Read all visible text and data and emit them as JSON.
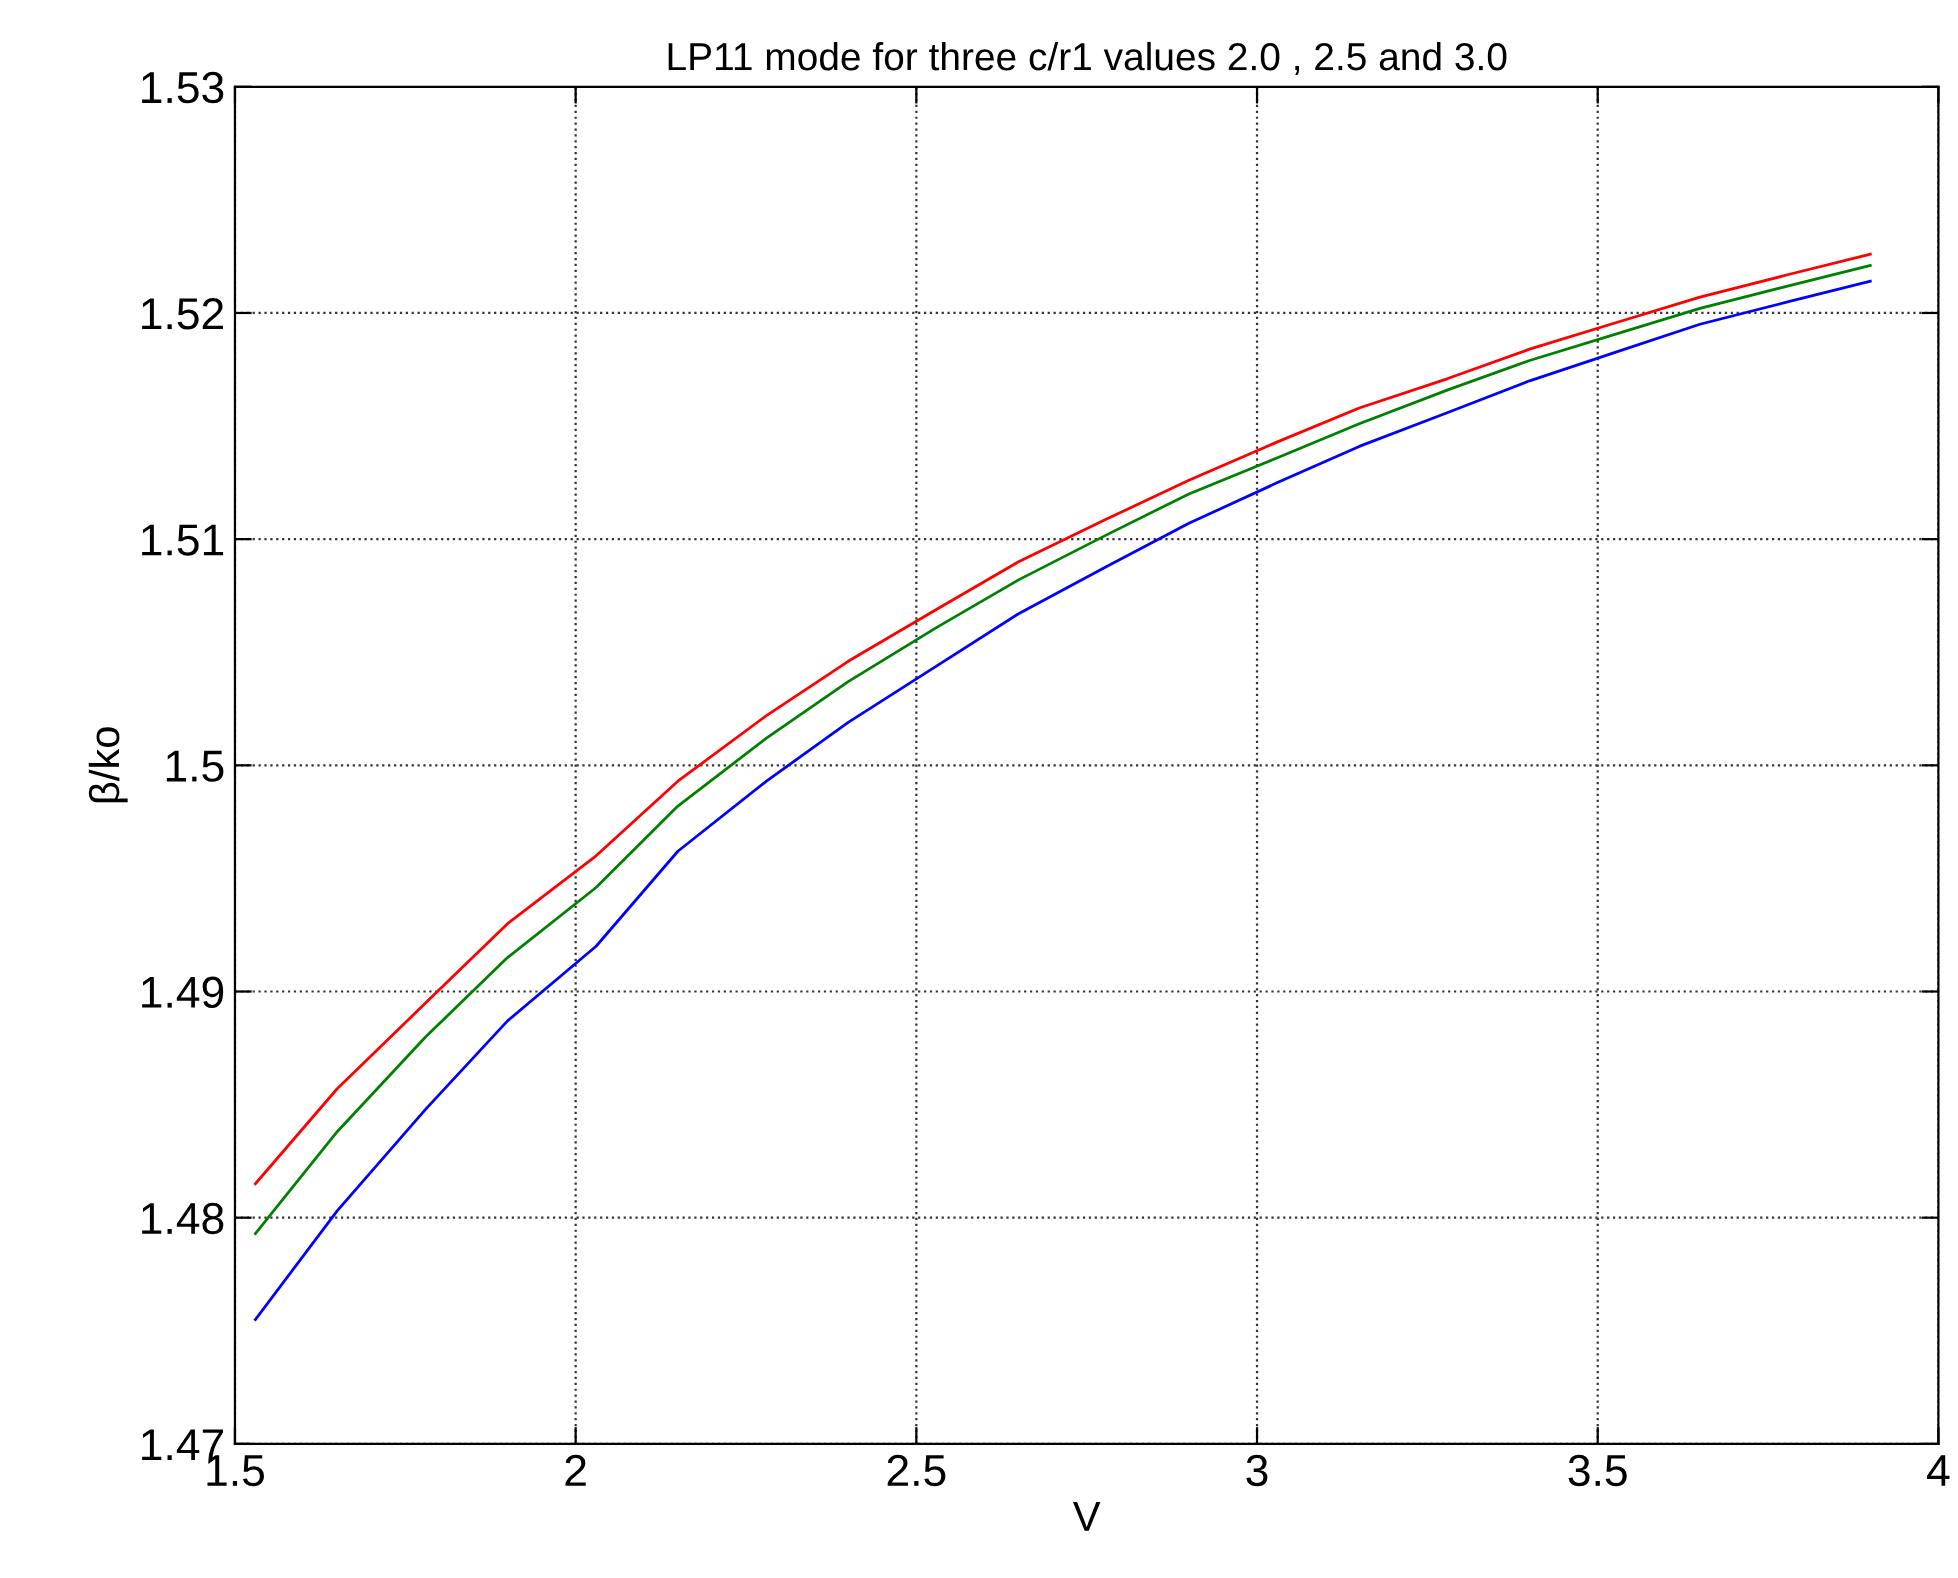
{
  "chart_data": {
    "type": "line",
    "title": "LP11 mode for three c/r1 values 2.0 , 2.5 and 3.0",
    "xlabel": "V",
    "ylabel": "β/ko",
    "x": [
      1.53,
      1.65,
      1.78,
      1.9,
      2.03,
      2.15,
      2.28,
      2.4,
      2.53,
      2.65,
      2.78,
      2.9,
      3.03,
      3.15,
      3.28,
      3.4,
      3.53,
      3.65,
      3.78,
      3.9
    ],
    "series": [
      {
        "color": "#ff0000",
        "values": [
          1.4815,
          1.4857,
          1.4895,
          1.493,
          1.496,
          1.4993,
          1.5022,
          1.5046,
          1.5069,
          1.509,
          1.5109,
          1.5126,
          1.5143,
          1.5158,
          1.5171,
          1.5184,
          1.5196,
          1.5207,
          1.5217,
          1.5226
        ]
      },
      {
        "color": "#008000",
        "values": [
          1.4793,
          1.4838,
          1.488,
          1.4915,
          1.4946,
          1.4982,
          1.5012,
          1.5037,
          1.5061,
          1.5082,
          1.5102,
          1.512,
          1.5136,
          1.5151,
          1.5166,
          1.5179,
          1.5191,
          1.5202,
          1.5212,
          1.5221
        ]
      },
      {
        "color": "#0000ff",
        "values": [
          1.4755,
          1.4803,
          1.4848,
          1.4887,
          1.492,
          1.4962,
          1.4993,
          1.5019,
          1.5044,
          1.5067,
          1.5088,
          1.5107,
          1.5125,
          1.5141,
          1.5156,
          1.517,
          1.5183,
          1.5195,
          1.5205,
          1.5214
        ]
      }
    ],
    "xlim": [
      1.5,
      4
    ],
    "xticks": [
      1.5,
      2,
      2.5,
      3,
      3.5,
      4
    ],
    "ylim": [
      1.47,
      1.53
    ],
    "yticks": [
      1.47,
      1.48,
      1.49,
      1.5,
      1.51,
      1.52,
      1.53
    ],
    "grid": true,
    "line_style": "solid",
    "marker": "none"
  }
}
